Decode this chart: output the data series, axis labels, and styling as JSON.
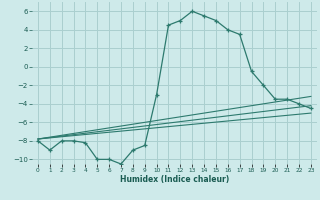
{
  "xlabel": "Humidex (Indice chaleur)",
  "ylabel": "",
  "background_color": "#ceeaea",
  "grid_color": "#aacfcf",
  "line_color": "#2d7a6e",
  "xlim": [
    -0.5,
    23.5
  ],
  "ylim": [
    -10.5,
    7.0
  ],
  "yticks": [
    -10,
    -8,
    -6,
    -4,
    -2,
    0,
    2,
    4,
    6
  ],
  "xticks": [
    0,
    1,
    2,
    3,
    4,
    5,
    6,
    7,
    8,
    9,
    10,
    11,
    12,
    13,
    14,
    15,
    16,
    17,
    18,
    19,
    20,
    21,
    22,
    23
  ],
  "xtick_labels": [
    "0",
    "1",
    "2",
    "3",
    "4",
    "5",
    "6",
    "7",
    "8",
    "9",
    "10",
    "11",
    "12",
    "13",
    "14",
    "15",
    "16",
    "17",
    "18",
    "19",
    "20",
    "21",
    "22",
    "23"
  ],
  "series": [
    {
      "x": [
        0,
        1,
        2,
        3,
        4,
        5,
        6,
        7,
        8,
        9,
        10,
        11,
        12,
        13,
        14,
        15,
        16,
        17,
        18,
        19,
        20,
        21,
        22,
        23
      ],
      "y": [
        -8,
        -9,
        -8,
        -8,
        -8.2,
        -10,
        -10,
        -10.5,
        -9,
        -8.5,
        -3,
        4.5,
        5,
        6,
        5.5,
        5,
        4,
        3.5,
        -0.5,
        -2,
        -3.5,
        -3.5,
        -4,
        -4.5
      ],
      "marker": true
    },
    {
      "x": [
        0,
        23
      ],
      "y": [
        -7.8,
        -3.2
      ],
      "marker": false
    },
    {
      "x": [
        0,
        23
      ],
      "y": [
        -7.8,
        -4.2
      ],
      "marker": false
    },
    {
      "x": [
        0,
        23
      ],
      "y": [
        -7.8,
        -5.0
      ],
      "marker": false
    }
  ]
}
